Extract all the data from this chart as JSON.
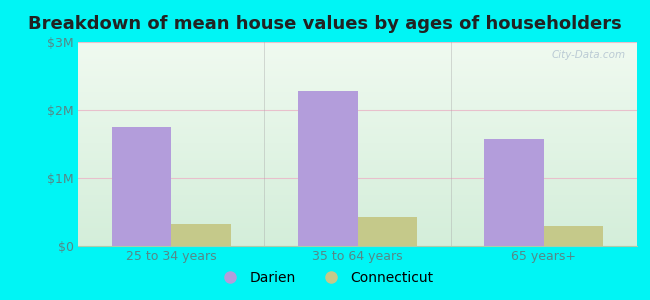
{
  "title": "Breakdown of mean house values by ages of householders",
  "categories": [
    "25 to 34 years",
    "35 to 64 years",
    "65 years+"
  ],
  "darien_values": [
    1750000,
    2280000,
    1580000
  ],
  "connecticut_values": [
    320000,
    420000,
    300000
  ],
  "ylim": [
    0,
    3000000
  ],
  "yticks": [
    0,
    1000000,
    2000000,
    3000000
  ],
  "ytick_labels": [
    "$0",
    "$1M",
    "$2M",
    "$3M"
  ],
  "bar_width": 0.32,
  "darien_color": "#b39ddb",
  "connecticut_color": "#c5c98a",
  "background_color": "#00f5f5",
  "grid_color": "#e8c0cc",
  "title_fontsize": 13,
  "tick_fontsize": 9,
  "legend_fontsize": 10,
  "watermark": "City-Data.com"
}
